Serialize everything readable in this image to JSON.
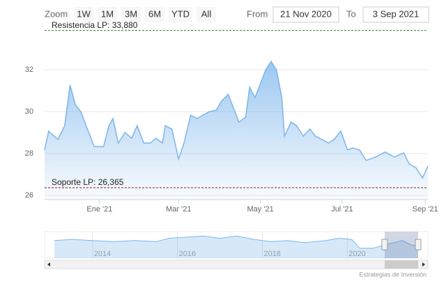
{
  "chart_data": {
    "type": "area",
    "zoom_label": "Zoom",
    "range_buttons": [
      "1W",
      "1M",
      "3M",
      "6M",
      "YTD",
      "All"
    ],
    "from_label": "From",
    "from_value": "21 Nov 2020",
    "to_label": "To",
    "to_value": "3 Sep 2021",
    "credits": "Estrategias de Inversión",
    "xlim": [
      "2020-11-21",
      "2021-09-03"
    ],
    "xticks": [
      {
        "value": "2021-01-01",
        "label": "Ene '21"
      },
      {
        "value": "2021-03-01",
        "label": "Mar '21"
      },
      {
        "value": "2021-05-01",
        "label": "May '21"
      },
      {
        "value": "2021-07-01",
        "label": "Jul '21"
      },
      {
        "value": "2021-09-01",
        "label": "Sep '21"
      }
    ],
    "ylim": [
      25.8,
      34.0
    ],
    "yticks": [
      26,
      28,
      30,
      32
    ],
    "grid": true,
    "plot_lines": [
      {
        "value": 33.88,
        "label": "Resistencia LP: 33,880",
        "color": "#2e7d32"
      },
      {
        "value": 26.365,
        "label": "Soporte LP: 26,365",
        "color": "#8b1a1a"
      }
    ],
    "series": [
      {
        "color": "#7cb5ec",
        "x": [
          "2020-11-21",
          "2020-11-24",
          "2020-12-01",
          "2020-12-06",
          "2020-12-10",
          "2020-12-14",
          "2020-12-18",
          "2020-12-22",
          "2020-12-28",
          "2021-01-04",
          "2021-01-08",
          "2021-01-11",
          "2021-01-15",
          "2021-01-20",
          "2021-01-25",
          "2021-01-29",
          "2021-02-03",
          "2021-02-08",
          "2021-02-12",
          "2021-02-17",
          "2021-02-19",
          "2021-02-24",
          "2021-03-01",
          "2021-03-05",
          "2021-03-10",
          "2021-03-15",
          "2021-03-19",
          "2021-03-24",
          "2021-03-29",
          "2021-04-02",
          "2021-04-07",
          "2021-04-12",
          "2021-04-15",
          "2021-04-20",
          "2021-04-23",
          "2021-04-27",
          "2021-05-01",
          "2021-05-05",
          "2021-05-09",
          "2021-05-13",
          "2021-05-17",
          "2021-05-19",
          "2021-05-24",
          "2021-05-28",
          "2021-06-02",
          "2021-06-07",
          "2021-06-11",
          "2021-06-16",
          "2021-06-21",
          "2021-06-25",
          "2021-06-30",
          "2021-07-05",
          "2021-07-09",
          "2021-07-14",
          "2021-07-19",
          "2021-07-26",
          "2021-08-02",
          "2021-08-09",
          "2021-08-16",
          "2021-08-20",
          "2021-08-25",
          "2021-08-30",
          "2021-09-03"
        ],
        "values": [
          28.17,
          29.07,
          28.67,
          29.33,
          31.27,
          30.33,
          30.0,
          29.33,
          28.33,
          28.33,
          29.33,
          29.67,
          28.5,
          29.0,
          28.73,
          29.33,
          28.5,
          28.5,
          28.73,
          28.5,
          29.33,
          29.17,
          27.73,
          28.5,
          29.83,
          29.67,
          29.83,
          30.0,
          30.07,
          30.5,
          30.83,
          30.0,
          29.5,
          29.73,
          31.17,
          30.67,
          31.33,
          32.0,
          32.4,
          32.0,
          30.67,
          28.83,
          29.5,
          29.33,
          28.83,
          29.17,
          28.83,
          28.67,
          28.5,
          28.67,
          29.07,
          28.17,
          28.27,
          28.17,
          27.67,
          27.83,
          28.07,
          27.83,
          28.03,
          27.5,
          27.33,
          26.83,
          27.4
        ]
      }
    ],
    "navigator": {
      "xlim": [
        2013.1,
        2021.67
      ],
      "ylim": [
        22,
        34
      ],
      "xticks": [
        2014,
        2016,
        2018,
        2020
      ],
      "x": [
        2013.1,
        2013.5,
        2014.0,
        2014.5,
        2015.0,
        2015.5,
        2015.8,
        2016.2,
        2016.6,
        2017.0,
        2017.4,
        2017.8,
        2018.2,
        2018.6,
        2019.0,
        2019.5,
        2019.8,
        2020.1,
        2020.3,
        2020.6,
        2021.0,
        2021.3,
        2021.5,
        2021.67
      ],
      "values": [
        30,
        30.5,
        30,
        29.5,
        30,
        29.5,
        31,
        31.5,
        32,
        31,
        32,
        30.5,
        29.5,
        30,
        29,
        30,
        31,
        30.5,
        26.5,
        26.5,
        28.5,
        30,
        28,
        27.5
      ]
    }
  }
}
